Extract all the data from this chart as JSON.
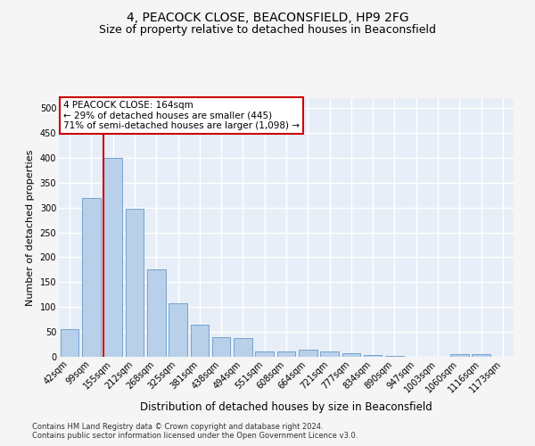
{
  "title1": "4, PEACOCK CLOSE, BEACONSFIELD, HP9 2FG",
  "title2": "Size of property relative to detached houses in Beaconsfield",
  "xlabel": "Distribution of detached houses by size in Beaconsfield",
  "ylabel": "Number of detached properties",
  "categories": [
    "42sqm",
    "99sqm",
    "155sqm",
    "212sqm",
    "268sqm",
    "325sqm",
    "381sqm",
    "438sqm",
    "494sqm",
    "551sqm",
    "608sqm",
    "664sqm",
    "721sqm",
    "777sqm",
    "834sqm",
    "890sqm",
    "947sqm",
    "1003sqm",
    "1060sqm",
    "1116sqm",
    "1173sqm"
  ],
  "values": [
    55,
    320,
    400,
    297,
    175,
    107,
    65,
    40,
    37,
    10,
    10,
    15,
    10,
    7,
    4,
    2,
    0,
    0,
    5,
    6,
    0
  ],
  "bar_color": "#b8d0ea",
  "bar_edge_color": "#6699cc",
  "vline_bin_index": 2,
  "vline_color": "#cc0000",
  "annotation_text": "4 PEACOCK CLOSE: 164sqm\n← 29% of detached houses are smaller (445)\n71% of semi-detached houses are larger (1,098) →",
  "annotation_box_color": "#ffffff",
  "annotation_box_edge": "#cc0000",
  "footer1": "Contains HM Land Registry data © Crown copyright and database right 2024.",
  "footer2": "Contains public sector information licensed under the Open Government Licence v3.0.",
  "ylim": [
    0,
    520
  ],
  "yticks": [
    0,
    50,
    100,
    150,
    200,
    250,
    300,
    350,
    400,
    450,
    500
  ],
  "bg_color": "#e8eef7",
  "grid_color": "#ffffff",
  "fig_bg_color": "#f5f5f5",
  "title1_fontsize": 10,
  "title2_fontsize": 9,
  "xlabel_fontsize": 8.5,
  "ylabel_fontsize": 8,
  "tick_fontsize": 7,
  "footer_fontsize": 6,
  "annotation_fontsize": 7.5
}
